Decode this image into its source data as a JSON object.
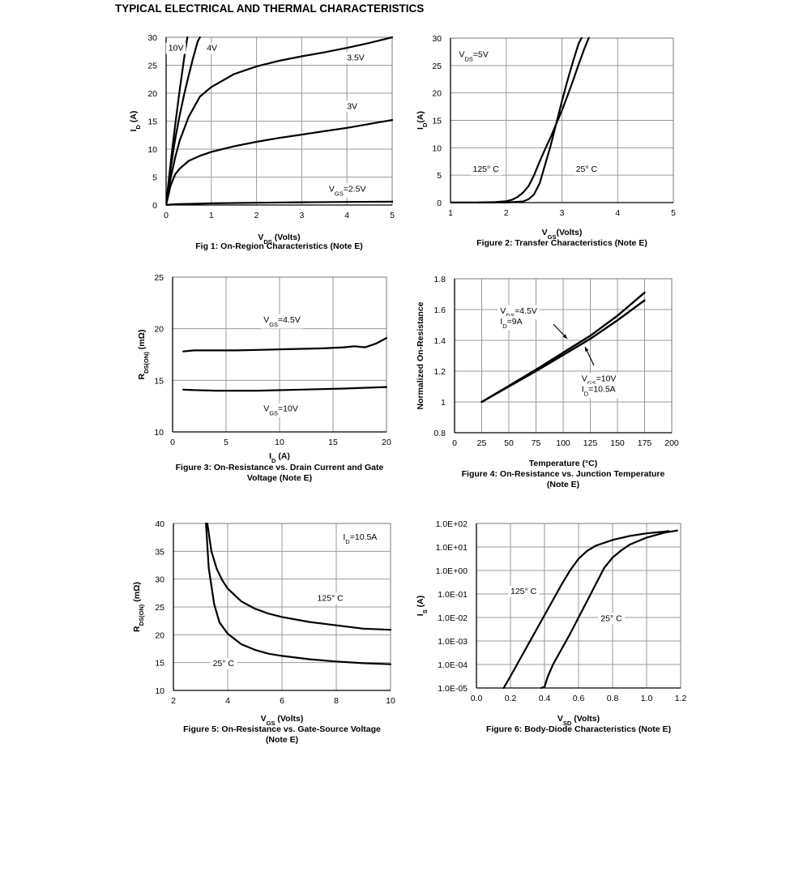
{
  "page": {
    "title": "TYPICAL ELECTRICAL AND THERMAL CHARACTERISTICS"
  },
  "chart_data": [
    {
      "type": "line",
      "caption": "Fig 1: On-Region Characteristics (Note E)",
      "xlabel": {
        "main": "V",
        "sub": "DS",
        "rest": " (Volts)"
      },
      "ylabel": {
        "main": "I",
        "sub": "D",
        "rest": " (A)"
      },
      "xlim": [
        0,
        5
      ],
      "ylim": [
        0,
        30
      ],
      "xticks": [
        "0",
        "1",
        "2",
        "3",
        "4",
        "5"
      ],
      "yticks": [
        "0",
        "5",
        "10",
        "15",
        "20",
        "25",
        "30"
      ],
      "grid": true,
      "series": [
        {
          "name": "10V",
          "x": [
            0,
            0.05,
            0.1,
            0.15,
            0.2,
            0.3,
            0.4,
            0.47
          ],
          "y": [
            0,
            3.8,
            7.5,
            11,
            14.3,
            20.5,
            26.3,
            30
          ]
        },
        {
          "name": "4V",
          "x": [
            0,
            0.05,
            0.1,
            0.2,
            0.3,
            0.4,
            0.5,
            0.6,
            0.7,
            0.75
          ],
          "y": [
            0,
            3.3,
            6.5,
            11.8,
            16,
            19.8,
            23.2,
            26.4,
            29.3,
            30
          ]
        },
        {
          "name": "3.5V",
          "x": [
            0,
            0.1,
            0.2,
            0.3,
            0.5,
            0.75,
            1,
            1.5,
            2,
            2.5,
            3,
            3.5,
            4,
            4.5,
            5
          ],
          "y": [
            0,
            4.8,
            8.5,
            11.5,
            15.8,
            19.4,
            21.1,
            23.4,
            24.8,
            25.8,
            26.6,
            27.3,
            28.1,
            29,
            30
          ]
        },
        {
          "name": "3V",
          "x": [
            0,
            0.1,
            0.2,
            0.3,
            0.5,
            0.75,
            1,
            1.5,
            2,
            2.5,
            3,
            3.5,
            4,
            4.5,
            5
          ],
          "y": [
            0,
            3.5,
            5.5,
            6.5,
            7.9,
            8.8,
            9.5,
            10.5,
            11.3,
            12,
            12.6,
            13.2,
            13.8,
            14.5,
            15.2
          ]
        },
        {
          "name": "VGS=2.5V",
          "x": [
            0,
            0.2,
            0.5,
            1,
            2,
            3,
            4,
            5
          ],
          "y": [
            0,
            0.15,
            0.2,
            0.3,
            0.4,
            0.5,
            0.55,
            0.6
          ]
        }
      ],
      "labels": [
        {
          "text": "10V",
          "x": 0.05,
          "y": 27.6
        },
        {
          "text": "4V",
          "x": 0.9,
          "y": 27.6
        },
        {
          "text": "3.5V",
          "x": 4.0,
          "y": 25.9
        },
        {
          "text": "3V",
          "x": 4.0,
          "y": 17.2
        },
        {
          "text": "V",
          "sub": "GS",
          "rest": "=2.5V",
          "x": 3.6,
          "y": 2.4
        }
      ]
    },
    {
      "type": "line",
      "caption": "Figure 2: Transfer Characteristics (Note E)",
      "xlabel": {
        "main": "V",
        "sub": "GS",
        "rest": "(Volts)"
      },
      "ylabel": {
        "main": "I",
        "sub": "D",
        "rest": "(A)"
      },
      "xlim": [
        1,
        5
      ],
      "ylim": [
        0,
        30
      ],
      "xticks": [
        "1",
        "2",
        "3",
        "4",
        "5"
      ],
      "yticks": [
        "0",
        "5",
        "10",
        "15",
        "20",
        "25",
        "30"
      ],
      "grid": true,
      "series": [
        {
          "name": "125° C",
          "x": [
            1,
            1.5,
            1.8,
            2,
            2.1,
            2.2,
            2.3,
            2.4,
            2.5,
            2.6,
            2.7,
            2.8,
            2.9,
            3.0,
            3.1,
            3.2,
            3.3,
            3.4,
            3.5
          ],
          "y": [
            0,
            0.02,
            0.1,
            0.25,
            0.5,
            1,
            1.8,
            3,
            5,
            7.5,
            9.8,
            12,
            14.4,
            16.8,
            19.5,
            22.3,
            25.2,
            28,
            30.5
          ]
        },
        {
          "name": "25° C",
          "x": [
            1,
            2,
            2.3,
            2.4,
            2.5,
            2.6,
            2.7,
            2.8,
            2.9,
            3.0,
            3.1,
            3.2,
            3.3,
            3.4
          ],
          "y": [
            0,
            0.02,
            0.2,
            0.6,
            1.5,
            3.5,
            7,
            10.5,
            14.5,
            18.5,
            22.3,
            25.8,
            29,
            31
          ]
        }
      ],
      "labels": [
        {
          "text": "V",
          "sub": "DS",
          "rest": "=5V",
          "x": 1.15,
          "y": 26.5
        },
        {
          "text": "125° C",
          "x": 1.4,
          "y": 5.6
        },
        {
          "text": "25° C",
          "x": 3.25,
          "y": 5.6
        }
      ]
    },
    {
      "type": "line",
      "caption": "Figure 3: On-Resistance vs. Drain Current and Gate Voltage (Note E)",
      "caption_lines": [
        "Figure 3: On-Resistance vs. Drain Current and Gate",
        "Voltage (Note E)"
      ],
      "xlabel": {
        "main": "I",
        "sub": "D",
        "rest": " (A)"
      },
      "ylabel": {
        "main": "R",
        "sub": "DS(ON)",
        "rest": " (mΩ)"
      },
      "xlim": [
        0,
        20
      ],
      "ylim": [
        10,
        25
      ],
      "xticks": [
        "0",
        "5",
        "10",
        "15",
        "20"
      ],
      "yticks": [
        "10",
        "15",
        "20",
        "25"
      ],
      "grid": true,
      "series": [
        {
          "name": "VGS=4.5V",
          "x": [
            1,
            2,
            4,
            5,
            6,
            8,
            10,
            12,
            14,
            16,
            17,
            18,
            19,
            20
          ],
          "y": [
            17.8,
            17.9,
            17.9,
            17.9,
            17.9,
            17.95,
            18.0,
            18.05,
            18.1,
            18.2,
            18.3,
            18.2,
            18.55,
            19.1
          ]
        },
        {
          "name": "VGS=10V",
          "x": [
            1,
            2,
            4,
            8,
            12,
            16,
            20
          ],
          "y": [
            14.1,
            14.05,
            14.0,
            14.0,
            14.1,
            14.2,
            14.35
          ]
        }
      ],
      "labels": [
        {
          "text": "V",
          "sub": "GS",
          "rest": "=4.5V",
          "x": 8.5,
          "y": 20.6
        },
        {
          "text": "V",
          "sub": "GS",
          "rest": "=10V",
          "x": 8.5,
          "y": 12.0
        }
      ]
    },
    {
      "type": "line",
      "caption": "Figure 4: On-Resistance vs. Junction Temperature (Note E)",
      "caption_lines": [
        "Figure 4: On-Resistance vs. Junction Temperature",
        "(Note E)"
      ],
      "xlabel": {
        "main": "Temperature (°C)"
      },
      "ylabel": {
        "main": "Normalized On-Resistance"
      },
      "xlim": [
        0,
        200
      ],
      "ylim": [
        0.8,
        1.8
      ],
      "xticks": [
        "0",
        "25",
        "50",
        "75",
        "100",
        "125",
        "150",
        "175",
        "200"
      ],
      "yticks": [
        "0.8",
        "1",
        "1.2",
        "1.4",
        "1.6",
        "1.8"
      ],
      "grid": true,
      "series": [
        {
          "name": "VGS=10V, ID=10.5A",
          "x": [
            25,
            50,
            75,
            100,
            125,
            150,
            175
          ],
          "y": [
            1.0,
            1.1,
            1.2,
            1.305,
            1.41,
            1.53,
            1.66
          ]
        },
        {
          "name": "VGS=4.5V, ID=9A",
          "x": [
            25,
            50,
            75,
            100,
            125,
            150,
            175
          ],
          "y": [
            1.0,
            1.105,
            1.21,
            1.32,
            1.43,
            1.56,
            1.71
          ]
        }
      ],
      "labels": [
        {
          "text": "V",
          "sub": "GS",
          "rest": "=4.5V",
          "x": 42,
          "y": 1.575
        },
        {
          "text": "I",
          "sub": "D",
          "rest": "=9A",
          "x": 42,
          "y": 1.505
        },
        {
          "text": "V",
          "sub": "GS",
          "rest": "=10V",
          "x": 117,
          "y": 1.135
        },
        {
          "text": "I",
          "sub": "D",
          "rest": "=10.5A",
          "x": 117,
          "y": 1.065
        }
      ]
    },
    {
      "type": "line",
      "caption": "Figure 5: On-Resistance vs. Gate-Source Voltage (Note E)",
      "caption_lines": [
        "Figure 5: On-Resistance vs. Gate-Source Voltage",
        "(Note E)"
      ],
      "xlabel": {
        "main": "V",
        "sub": "GS",
        "rest": " (Volts)"
      },
      "ylabel": {
        "main": "R",
        "sub": "DS(ON)",
        "rest": " (mΩ)"
      },
      "xlim": [
        2,
        10
      ],
      "ylim": [
        10,
        40
      ],
      "xticks": [
        "2",
        "4",
        "6",
        "8",
        "10"
      ],
      "yticks": [
        "10",
        "15",
        "20",
        "25",
        "30",
        "35",
        "40"
      ],
      "grid": true,
      "series": [
        {
          "name": "125° C",
          "x": [
            3.25,
            3.4,
            3.6,
            3.8,
            4,
            4.5,
            5,
            5.5,
            6,
            7,
            8,
            9,
            10
          ],
          "y": [
            40,
            35,
            31.8,
            29.8,
            28.3,
            26,
            24.7,
            23.8,
            23.2,
            22.3,
            21.7,
            21.1,
            20.9
          ]
        },
        {
          "name": "25° C",
          "x": [
            3.2,
            3.3,
            3.5,
            3.7,
            4,
            4.5,
            5,
            5.5,
            6,
            7,
            8,
            9,
            10
          ],
          "y": [
            40,
            32,
            25.5,
            22.2,
            20.2,
            18.3,
            17.3,
            16.6,
            16.2,
            15.6,
            15.2,
            14.9,
            14.7
          ]
        }
      ],
      "labels": [
        {
          "text": "I",
          "sub": "D",
          "rest": "=10.5A",
          "x": 8.25,
          "y": 37.1
        },
        {
          "text": "125° C",
          "x": 7.3,
          "y": 26.1
        },
        {
          "text": "25° C",
          "x": 3.45,
          "y": 14.4
        }
      ]
    },
    {
      "type": "line",
      "caption": "Figure 6: Body-Diode Characteristics (Note E)",
      "xlabel": {
        "main": "V",
        "sub": "SD",
        "rest": " (Volts)"
      },
      "ylabel": {
        "main": "I",
        "sub": "S",
        "rest": " (A)"
      },
      "yscale": "log",
      "xlim": [
        0.0,
        1.2
      ],
      "ylim_exp": [
        -5,
        2
      ],
      "xticks": [
        "0.0",
        "0.2",
        "0.4",
        "0.6",
        "0.8",
        "1.0",
        "1.2"
      ],
      "yticks": [
        "1.0E-05",
        "1.0E-04",
        "1.0E-03",
        "1.0E-02",
        "1.0E-01",
        "1.0E+00",
        "1.0E+01",
        "1.0E+02"
      ],
      "grid": true,
      "series": [
        {
          "name": "125° C",
          "x": [
            0.16,
            0.2,
            0.25,
            0.3,
            0.35,
            0.4,
            0.45,
            0.5,
            0.55,
            0.6,
            0.65,
            0.7,
            0.8,
            0.9,
            1.0,
            1.1,
            1.13
          ],
          "y_log10": [
            -5,
            -4.5,
            -3.85,
            -3.2,
            -2.55,
            -1.9,
            -1.25,
            -0.6,
            0.0,
            0.5,
            0.83,
            1.05,
            1.3,
            1.47,
            1.58,
            1.65,
            1.68
          ]
        },
        {
          "name": "25° C",
          "x": [
            0.38,
            0.4,
            0.42,
            0.45,
            0.5,
            0.55,
            0.6,
            0.65,
            0.7,
            0.75,
            0.8,
            0.85,
            0.9,
            1.0,
            1.1,
            1.18
          ],
          "y_log10": [
            -5,
            -4.95,
            -4.5,
            -4.0,
            -3.35,
            -2.7,
            -2.0,
            -1.3,
            -0.6,
            0.1,
            0.55,
            0.85,
            1.1,
            1.4,
            1.6,
            1.7
          ]
        }
      ],
      "labels": [
        {
          "text": "125° C",
          "x": 0.2,
          "y_log10": -1.0
        },
        {
          "text": "25° C",
          "x": 0.73,
          "y_log10": -2.15
        }
      ]
    }
  ]
}
